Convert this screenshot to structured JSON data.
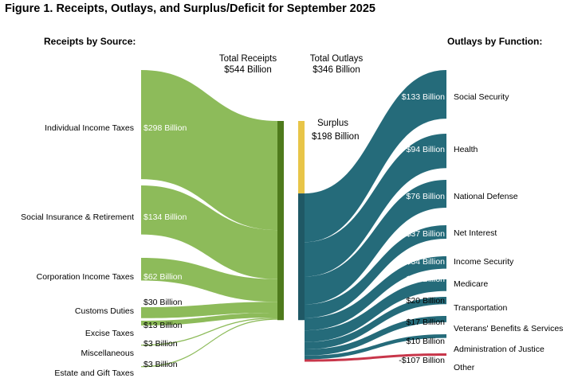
{
  "figure": {
    "title": "Figure 1. Receipts, Outlays, and Surplus/Deficit for September 2025"
  },
  "headers": {
    "receipts_source": "Receipts by Source:",
    "outlays_function": "Outlays by Function:",
    "total_receipts_line1": "Total Receipts",
    "total_receipts_line2": "$544 Billion",
    "total_outlays_line1": "Total Outlays",
    "total_outlays_line2": "$346 Billion"
  },
  "surplus": {
    "label": "Surplus",
    "value_label": "$198 Billion",
    "value": 198
  },
  "colors": {
    "receipts": "#8dbb5a",
    "receipts_bar": "#4e7a1c",
    "outlays": "#256b7a",
    "outlays_bar": "#1f5865",
    "surplus": "#e8c548",
    "negative": "#c8364a"
  },
  "chart_data": {
    "type": "sankey",
    "title": "Figure 1. Receipts, Outlays, and Surplus/Deficit for September 2025",
    "units": "Billion dollars",
    "total_receipts": 544,
    "total_outlays": 346,
    "surplus": 198,
    "receipts": [
      {
        "name": "Individual Income Taxes",
        "value": 298,
        "label": "$298 Billion"
      },
      {
        "name": "Social Insurance & Retirement",
        "value": 134,
        "label": "$134 Billion"
      },
      {
        "name": "Corporation Income Taxes",
        "value": 62,
        "label": "$62 Billion"
      },
      {
        "name": "Customs Duties",
        "value": 30,
        "label": "$30 Billion"
      },
      {
        "name": "Excise Taxes",
        "value": 13,
        "label": "$13 Billion"
      },
      {
        "name": "Miscellaneous",
        "value": 3,
        "label": "$3 Billion"
      },
      {
        "name": "Estate and Gift Taxes",
        "value": 3,
        "label": "$3 Billion"
      }
    ],
    "outlays": [
      {
        "name": "Social Security",
        "value": 133,
        "label": "$133 Billion"
      },
      {
        "name": "Health",
        "value": 94,
        "label": "$94 Billion"
      },
      {
        "name": "National Defense",
        "value": 76,
        "label": "$76 Billion"
      },
      {
        "name": "Net Interest",
        "value": 37,
        "label": "$37 Billion"
      },
      {
        "name": "Income Security",
        "value": 34,
        "label": "$34 Billion"
      },
      {
        "name": "Medicare",
        "value": 32,
        "label": "$32 Billion"
      },
      {
        "name": "Transportation",
        "value": 20,
        "label": "$20 Billion"
      },
      {
        "name": "Veterans' Benefits & Services",
        "value": 17,
        "label": "$17 Billion"
      },
      {
        "name": "Administration of Justice",
        "value": 10,
        "label": "$10 Billion"
      },
      {
        "name": "Other",
        "value": -107,
        "label": "-$107 Billion"
      }
    ]
  }
}
